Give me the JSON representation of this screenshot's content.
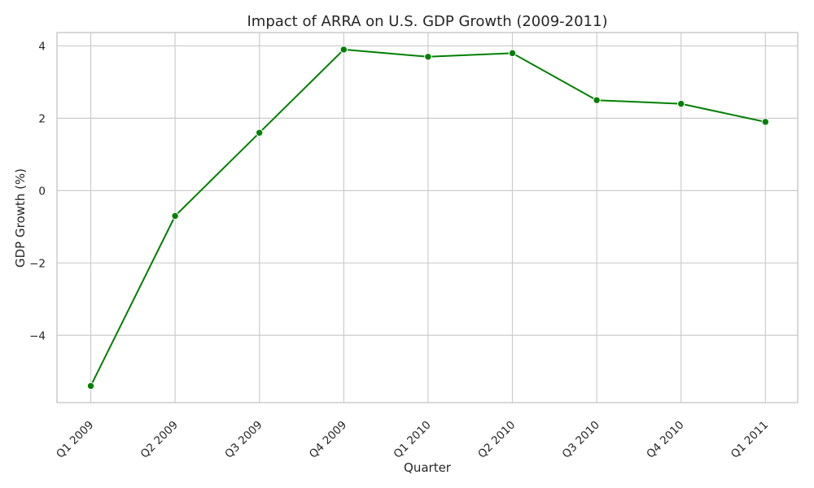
{
  "chart_data": {
    "type": "line",
    "title": "Impact of ARRA on U.S. GDP Growth (2009-2011)",
    "xlabel": "Quarter",
    "ylabel": "GDP Growth (%)",
    "categories": [
      "Q1 2009",
      "Q2 2009",
      "Q3 2009",
      "Q4 2009",
      "Q1 2010",
      "Q2 2010",
      "Q3 2010",
      "Q4 2010",
      "Q1 2011"
    ],
    "series": [
      {
        "values": [
          -5.4,
          -0.7,
          1.6,
          3.9,
          3.7,
          3.8,
          2.5,
          2.4,
          1.9
        ],
        "color": "#008000",
        "marker": "circle"
      }
    ],
    "yticks": [
      -4,
      -2,
      0,
      2,
      4
    ],
    "ylim": [
      -5.86,
      4.37
    ],
    "grid": true,
    "x_tick_rotation": 45
  }
}
